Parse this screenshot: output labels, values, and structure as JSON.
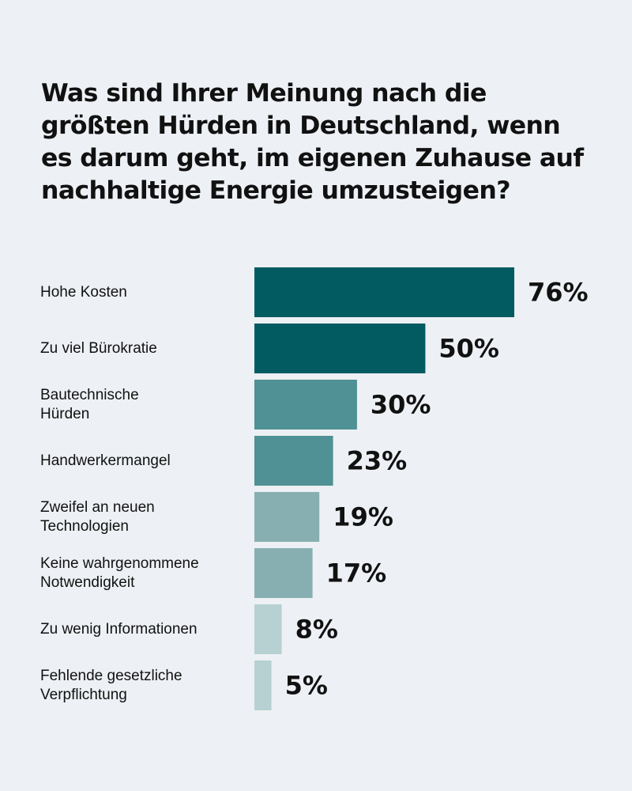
{
  "chart_data": {
    "type": "bar",
    "orientation": "horizontal",
    "title": "Was sind Ihrer Meinung nach die größten Hürden in Deutschland, wenn es darum geht, im eigenen Zuhause auf nachhaltige Energie umzusteigen?",
    "categories": [
      [
        "Hohe Kosten"
      ],
      [
        "Zu viel Bürokratie"
      ],
      [
        "Bautechnische",
        "Hürden"
      ],
      [
        "Handwerkermangel"
      ],
      [
        "Zweifel an neuen",
        "Technologien"
      ],
      [
        "Keine wahrgenommene",
        "Notwendigkeit"
      ],
      [
        "Zu wenig Informationen"
      ],
      [
        "Fehlende gesetzliche",
        "Verpflichtung"
      ]
    ],
    "values": [
      76,
      50,
      30,
      23,
      19,
      17,
      8,
      5
    ],
    "value_labels": [
      "76%",
      "50%",
      "30%",
      "23%",
      "19%",
      "17%",
      "8%",
      "5%"
    ],
    "unit": "%",
    "xlim": [
      0,
      100
    ],
    "grid": false,
    "legend": "none",
    "colors": [
      "#035b62",
      "#035b62",
      "#4f9194",
      "#4f9194",
      "#87afb2",
      "#87afb2",
      "#b7d1d3",
      "#b7d1d3"
    ]
  }
}
